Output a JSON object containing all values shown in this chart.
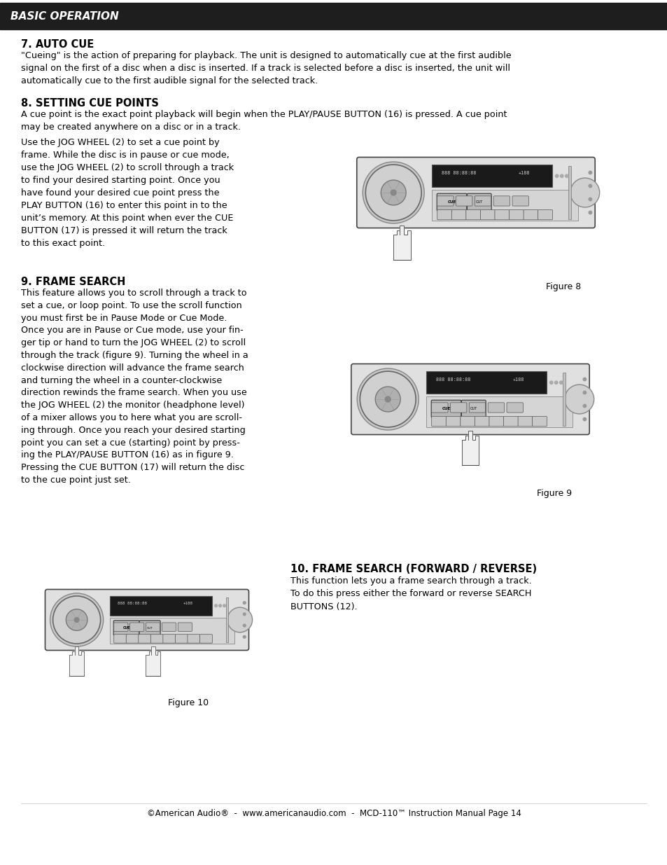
{
  "page_bg": "#ffffff",
  "header_bg": "#1e1e1e",
  "header_text": "BASIC OPERATION",
  "header_text_color": "#ffffff",
  "footer_text": "©American Audio®  -  www.americanaudio.com  -  MCD-110™ Instruction Manual Page 14",
  "section7_title": "7. AUTO CUE",
  "section7_body": "\"Cueing\" is the action of preparing for playback. The unit is designed to automatically cue at the first audible\nsignal on the first of a disc when a disc is inserted. If a track is selected before a disc is inserted, the unit will\nautomatically cue to the first audible signal for the selected track.",
  "section8_title": "8. SETTING CUE POINTS",
  "section8_body1": "A cue point is the exact point playback will begin when the PLAY/PAUSE BUTTON (16) is pressed. A cue point\nmay be created anywhere on a disc or in a track.",
  "section8_body2_plain": "Use the ",
  "section8_body2": "Use the JOG WHEEL (2) to set a cue point by\nframe. While the disc is in pause or cue mode,\nuse the JOG WHEEL (2) to scroll through a track\nto find your desired starting point. Once you\nhave found your desired cue point press the\nPLAY BUTTON (16) to enter this point in to the\nunit’s memory. At this point when ever the CUE\nBUTTON (17) is pressed it will return the track\nto this exact point.",
  "figure8_label": "Figure 8",
  "section9_title": "9. FRAME SEARCH",
  "section9_body": "This feature allows you to scroll through a track to\nset a cue, or loop point. To use the scroll function\nyou must first be in Pause Mode or Cue Mode.\nOnce you are in Pause or Cue mode, use your fin-\nger tip or hand to turn the JOG WHEEL (2) to scroll\nthrough the track (figure 9). Turning the wheel in a\nclockwise direction will advance the frame search\nand turning the wheel in a counter-clockwise\ndirection rewinds the frame search. When you use\nthe JOG WHEEL (2) the monitor (headphone level)\nof a mixer allows you to here what you are scroll-\ning through. Once you reach your desired starting\npoint you can set a cue (starting) point by press-\ning the PLAY/PAUSE BUTTON (16) as in figure 9.\nPressing the CUE BUTTON (17) will return the disc\nto the cue point just set.",
  "figure9_label": "Figure 9",
  "section10_title": "10. FRAME SEARCH (FORWARD / REVERSE)",
  "section10_body": "This function lets you a frame search through a track.\nTo do this press either the forward or reverse SEARCH\nBUTTONS (12).",
  "figure10_label": "Figure 10",
  "lmargin": 30,
  "rmargin": 924,
  "title_fontsize": 10.5,
  "body_fontsize": 9.2,
  "header_fontsize": 11,
  "footer_fontsize": 8.5
}
